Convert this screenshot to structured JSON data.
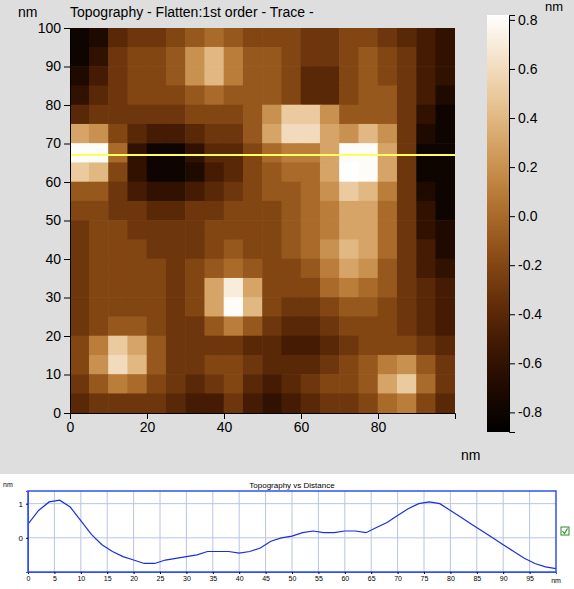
{
  "chart_data": [
    {
      "type": "heatmap",
      "title": "Topography - Flatten:1st order - Trace -",
      "x_label": "nm",
      "y_label": "nm",
      "xlim": [
        0,
        100
      ],
      "ylim": [
        0,
        100
      ],
      "xticks": [
        0,
        20,
        40,
        60,
        80
      ],
      "yticks": [
        0,
        10,
        20,
        30,
        40,
        50,
        60,
        70,
        80,
        90,
        100
      ],
      "x": [
        2.5,
        7.5,
        12.5,
        17.5,
        22.5,
        27.5,
        32.5,
        37.5,
        42.5,
        47.5,
        52.5,
        57.5,
        62.5,
        67.5,
        72.5,
        77.5,
        82.5,
        87.5,
        92.5,
        97.5
      ],
      "y": [
        97.5,
        92.5,
        87.5,
        82.5,
        77.5,
        72.5,
        67.5,
        62.5,
        57.5,
        52.5,
        47.5,
        42.5,
        37.5,
        32.5,
        27.5,
        22.5,
        17.5,
        12.5,
        7.5,
        2.5
      ],
      "cells": [
        [
          -0.8,
          -0.7,
          -0.4,
          -0.3,
          -0.3,
          -0.2,
          -0.1,
          0.0,
          -0.1,
          -0.2,
          -0.2,
          -0.2,
          -0.3,
          -0.3,
          -0.2,
          -0.2,
          -0.3,
          -0.4,
          -0.5,
          -0.6
        ],
        [
          -0.8,
          -0.6,
          -0.3,
          -0.2,
          -0.2,
          -0.1,
          0.2,
          0.4,
          0.1,
          -0.1,
          -0.1,
          -0.2,
          -0.3,
          -0.3,
          -0.2,
          -0.1,
          -0.2,
          -0.3,
          -0.5,
          -0.6
        ],
        [
          -0.7,
          -0.5,
          -0.3,
          -0.2,
          -0.2,
          -0.1,
          0.2,
          0.4,
          0.1,
          -0.1,
          -0.1,
          -0.2,
          -0.4,
          -0.4,
          -0.2,
          -0.1,
          -0.2,
          -0.3,
          -0.5,
          -0.6
        ],
        [
          -0.6,
          -0.4,
          -0.3,
          -0.2,
          -0.2,
          -0.2,
          -0.1,
          0.0,
          -0.1,
          -0.1,
          -0.1,
          -0.2,
          -0.4,
          -0.4,
          -0.2,
          -0.1,
          -0.1,
          -0.3,
          -0.5,
          -0.7
        ],
        [
          -0.4,
          -0.3,
          -0.3,
          -0.3,
          -0.3,
          -0.3,
          -0.2,
          -0.2,
          -0.2,
          -0.1,
          0.2,
          0.5,
          0.5,
          0.2,
          -0.1,
          -0.1,
          -0.1,
          -0.3,
          -0.6,
          -0.8
        ],
        [
          0.3,
          0.2,
          -0.2,
          -0.4,
          -0.5,
          -0.5,
          -0.4,
          -0.3,
          -0.3,
          -0.1,
          0.3,
          0.6,
          0.6,
          0.3,
          0.2,
          0.4,
          0.2,
          -0.3,
          -0.7,
          -0.8
        ],
        [
          0.8,
          0.8,
          0.0,
          -0.6,
          -0.8,
          -0.8,
          -0.6,
          -0.4,
          -0.4,
          -0.2,
          0.0,
          0.1,
          0.1,
          0.3,
          0.8,
          0.8,
          0.3,
          -0.3,
          -0.8,
          -0.8
        ],
        [
          0.5,
          0.4,
          -0.2,
          -0.6,
          -0.8,
          -0.8,
          -0.7,
          -0.5,
          -0.4,
          -0.2,
          -0.1,
          0.0,
          0.0,
          0.3,
          0.9,
          0.8,
          0.3,
          -0.3,
          -0.8,
          -0.8
        ],
        [
          -0.1,
          -0.1,
          -0.3,
          -0.5,
          -0.6,
          -0.6,
          -0.5,
          -0.4,
          -0.3,
          -0.2,
          -0.1,
          -0.1,
          0.0,
          0.2,
          0.5,
          0.4,
          0.1,
          -0.3,
          -0.7,
          -0.8
        ],
        [
          -0.2,
          -0.2,
          -0.3,
          -0.3,
          -0.4,
          -0.4,
          -0.3,
          -0.3,
          -0.2,
          -0.2,
          -0.2,
          -0.1,
          0.0,
          0.1,
          0.3,
          0.3,
          0.0,
          -0.3,
          -0.6,
          -0.8
        ],
        [
          -0.3,
          -0.2,
          -0.2,
          -0.3,
          -0.3,
          -0.3,
          -0.3,
          -0.2,
          -0.2,
          -0.2,
          -0.2,
          -0.1,
          0.0,
          0.1,
          0.3,
          0.3,
          0.0,
          -0.3,
          -0.6,
          -0.7
        ],
        [
          -0.3,
          -0.2,
          -0.2,
          -0.2,
          -0.3,
          -0.3,
          -0.3,
          -0.2,
          -0.1,
          -0.2,
          -0.2,
          -0.1,
          0.0,
          0.2,
          0.4,
          0.3,
          0.0,
          -0.3,
          -0.5,
          -0.7
        ],
        [
          -0.3,
          -0.2,
          -0.2,
          -0.2,
          -0.2,
          -0.3,
          -0.2,
          -0.1,
          0.0,
          -0.1,
          -0.2,
          -0.2,
          -0.1,
          0.1,
          0.3,
          0.2,
          -0.1,
          -0.3,
          -0.5,
          -0.6
        ],
        [
          -0.3,
          -0.2,
          -0.2,
          -0.2,
          -0.2,
          -0.3,
          -0.2,
          0.3,
          0.7,
          0.3,
          -0.2,
          -0.2,
          -0.2,
          0.0,
          0.1,
          0.0,
          -0.1,
          -0.3,
          -0.4,
          -0.5
        ],
        [
          -0.3,
          -0.2,
          -0.2,
          -0.2,
          -0.2,
          -0.3,
          -0.2,
          0.3,
          0.8,
          0.4,
          -0.2,
          -0.3,
          -0.3,
          -0.2,
          -0.1,
          -0.1,
          -0.2,
          -0.3,
          -0.4,
          -0.5
        ],
        [
          -0.3,
          -0.2,
          -0.1,
          -0.1,
          -0.2,
          -0.3,
          -0.3,
          -0.1,
          0.1,
          -0.1,
          -0.3,
          -0.4,
          -0.4,
          -0.3,
          -0.2,
          -0.2,
          -0.2,
          -0.3,
          -0.4,
          -0.5
        ],
        [
          -0.2,
          0.1,
          0.5,
          0.3,
          -0.1,
          -0.3,
          -0.3,
          -0.3,
          -0.3,
          -0.4,
          -0.4,
          -0.5,
          -0.5,
          -0.4,
          -0.3,
          -0.2,
          -0.2,
          -0.2,
          -0.3,
          -0.4
        ],
        [
          -0.2,
          0.2,
          0.6,
          0.4,
          -0.1,
          -0.3,
          -0.3,
          -0.2,
          -0.2,
          -0.3,
          -0.4,
          -0.4,
          -0.4,
          -0.3,
          -0.2,
          -0.1,
          0.1,
          0.2,
          -0.1,
          -0.3
        ],
        [
          -0.3,
          -0.1,
          0.1,
          0.0,
          -0.2,
          -0.3,
          -0.4,
          -0.3,
          -0.2,
          -0.4,
          -0.5,
          -0.4,
          -0.3,
          -0.2,
          -0.2,
          -0.1,
          0.3,
          0.5,
          0.0,
          -0.3
        ],
        [
          -0.4,
          -0.3,
          -0.3,
          -0.3,
          -0.3,
          -0.4,
          -0.5,
          -0.5,
          -0.3,
          -0.5,
          -0.6,
          -0.5,
          -0.4,
          -0.3,
          -0.3,
          -0.2,
          0.0,
          0.1,
          -0.2,
          -0.4
        ]
      ],
      "colorbar": {
        "label": "nm",
        "range": [
          -0.88,
          0.82
        ],
        "ticks": [
          0.8,
          0.6,
          0.4,
          0.2,
          {
            "value": 0,
            "label": "0.0"
          },
          -0.2,
          -0.4,
          -0.6,
          -0.8
        ]
      },
      "profile_y": 67
    },
    {
      "type": "line",
      "title": "Topography vs Distance",
      "x_label": "nm",
      "y_label": "nm",
      "xlim": [
        0,
        100
      ],
      "ylim": [
        -1,
        1.37
      ],
      "xticks": [
        0,
        5,
        10,
        15,
        20,
        25,
        30,
        35,
        40,
        45,
        50,
        55,
        60,
        65,
        70,
        75,
        80,
        85,
        90,
        95
      ],
      "yticks": [
        0,
        1
      ],
      "grid": true,
      "color": "#1a2ee0",
      "x": [
        0,
        2,
        4,
        6,
        8,
        10,
        12,
        14,
        16,
        18,
        20,
        22,
        24,
        26,
        28,
        30,
        32,
        34,
        36,
        38,
        40,
        42,
        44,
        46,
        48,
        50,
        52,
        54,
        56,
        58,
        60,
        62,
        64,
        66,
        68,
        70,
        72,
        74,
        76,
        78,
        80,
        82,
        84,
        86,
        88,
        90,
        92,
        94,
        96,
        98,
        100
      ],
      "values": [
        0.4,
        0.8,
        1.05,
        1.1,
        0.9,
        0.5,
        0.1,
        -0.2,
        -0.4,
        -0.55,
        -0.65,
        -0.75,
        -0.75,
        -0.65,
        -0.6,
        -0.55,
        -0.5,
        -0.4,
        -0.4,
        -0.4,
        -0.45,
        -0.4,
        -0.3,
        -0.1,
        0.0,
        0.05,
        0.15,
        0.2,
        0.15,
        0.15,
        0.2,
        0.2,
        0.15,
        0.3,
        0.45,
        0.65,
        0.85,
        1.0,
        1.05,
        1.0,
        0.8,
        0.6,
        0.4,
        0.2,
        0.0,
        -0.2,
        -0.4,
        -0.6,
        -0.75,
        -0.85,
        -0.9
      ]
    }
  ]
}
